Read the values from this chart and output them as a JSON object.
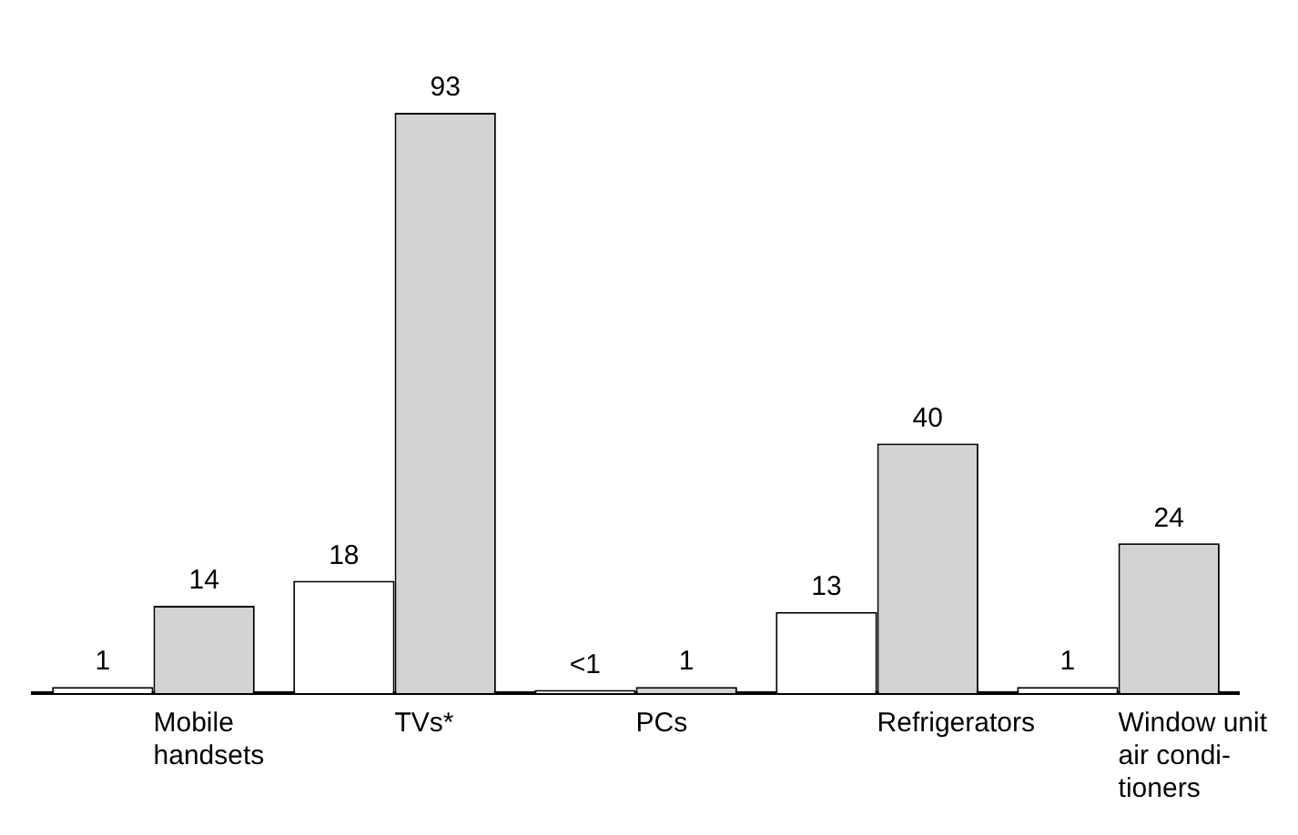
{
  "chart_data": {
    "type": "bar",
    "categories": [
      "Mobile handsets",
      "TVs*",
      "PCs",
      "Refrigerators",
      "Window unit air condi-tioners"
    ],
    "series": [
      {
        "color": "#ffffff",
        "values": [
          1,
          18,
          0.5,
          13,
          1
        ],
        "value_labels": [
          "1",
          "18",
          "<1",
          "13",
          "1"
        ]
      },
      {
        "color": "#d3d3d3",
        "values": [
          14,
          93,
          1,
          40,
          24
        ],
        "value_labels": [
          "14",
          "93",
          "1",
          "40",
          "24"
        ]
      }
    ],
    "grid": false,
    "legend": false
  }
}
